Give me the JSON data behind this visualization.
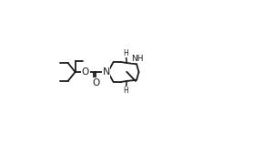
{
  "bg_color": "#ffffff",
  "line_color": "#1a1a1a",
  "lw": 1.3,
  "figsize": [
    2.78,
    1.58
  ],
  "dpi": 100,
  "xlim": [
    0,
    1
  ],
  "ylim": [
    0,
    1
  ]
}
